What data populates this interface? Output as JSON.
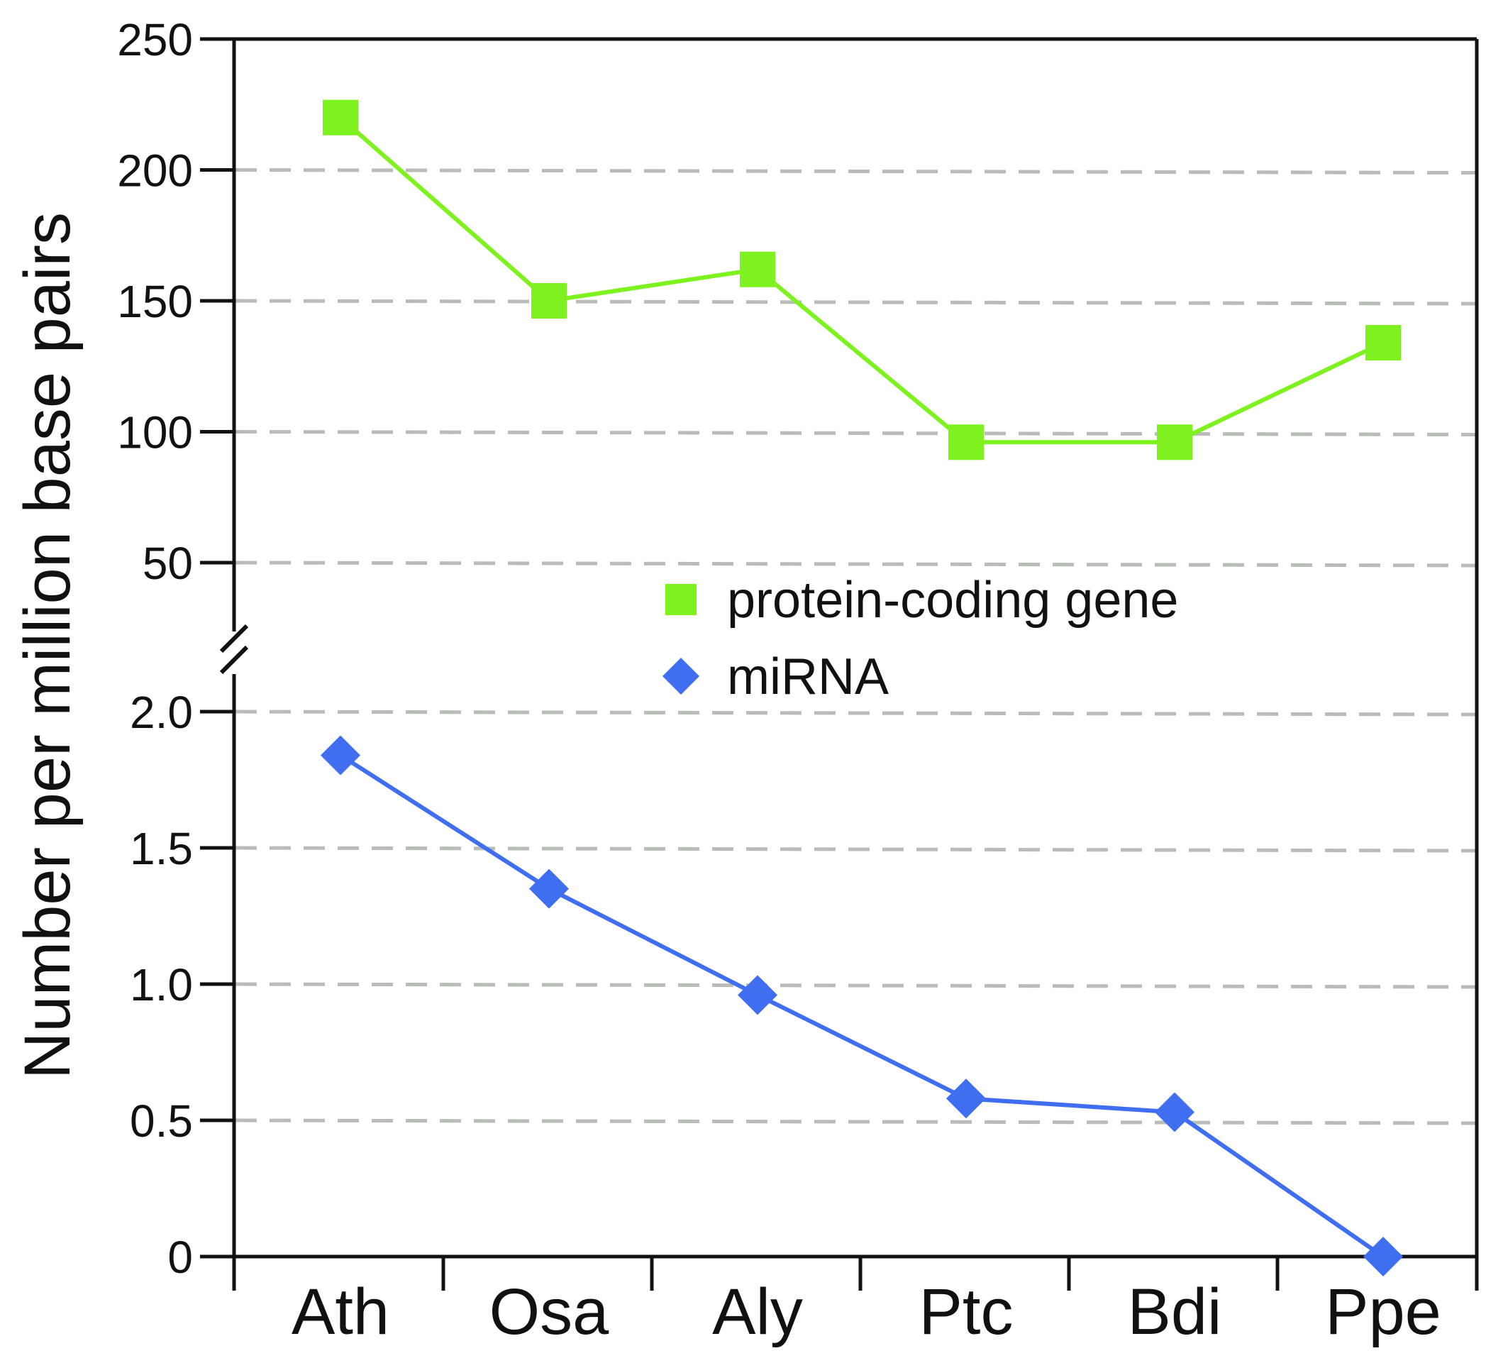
{
  "chart_data": {
    "type": "line",
    "ylabel": "Number per million base pairs",
    "xlabel": "",
    "categories": [
      "Ath",
      "Osa",
      "Aly",
      "Ptc",
      "Bdi",
      "Ppe"
    ],
    "broken_axis": true,
    "upper_axis": {
      "ylim": [
        30,
        250
      ],
      "ticks": [
        50,
        100,
        150,
        200,
        250
      ],
      "tick_labels": [
        "50",
        "100",
        "150",
        "200",
        "250"
      ],
      "gridlines": [
        50,
        100,
        150,
        200
      ]
    },
    "lower_axis": {
      "ylim": [
        0,
        2.2
      ],
      "ticks": [
        0,
        0.5,
        1.0,
        1.5,
        2.0
      ],
      "tick_labels": [
        "0",
        "0.5",
        "1.0",
        "1.5",
        "2.0"
      ],
      "gridlines": [
        0.5,
        1.0,
        1.5,
        2.0
      ]
    },
    "series": [
      {
        "name": "protein-coding gene",
        "axis": "upper",
        "marker": "square",
        "color": "#7ef21f",
        "values": [
          220,
          150,
          162,
          96,
          96,
          134
        ]
      },
      {
        "name": "miRNA",
        "axis": "lower",
        "marker": "diamond",
        "color": "#3f6ef0",
        "values": [
          1.84,
          1.35,
          0.96,
          0.58,
          0.53,
          0.0
        ]
      }
    ],
    "legend": {
      "placement": "center-right",
      "entries": [
        "protein-coding gene",
        "miRNA"
      ]
    },
    "grid": true,
    "grid_color": "#b8bdb8",
    "axis_color": "#111111"
  }
}
